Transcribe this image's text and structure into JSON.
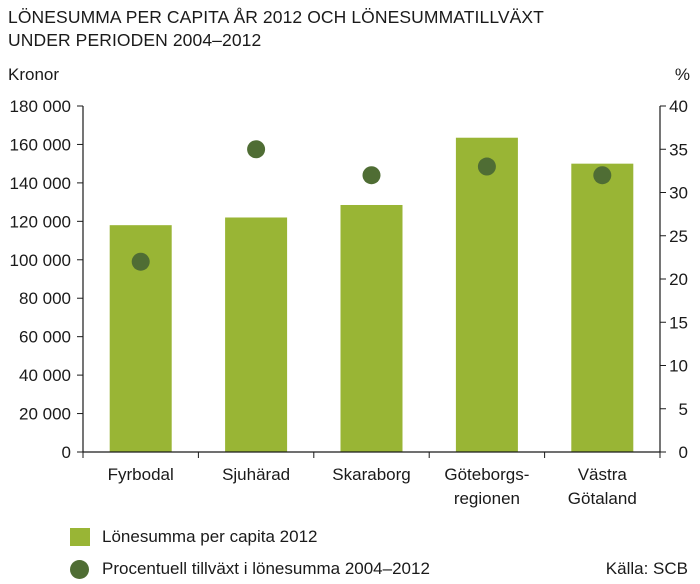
{
  "title_lines": [
    "LÖNESUMMA PER CAPITA ÅR 2012 OCH LÖNESUMMATILLVÄXT",
    "UNDER PERIODEN 2004–2012"
  ],
  "source": "Källa: SCB",
  "colors": {
    "bar": "#99b535",
    "dot": "#4f6d34",
    "axis": "#1a1a1a"
  },
  "chart_data": {
    "type": "bar",
    "title": "LÖNESUMMA PER CAPITA ÅR 2012 OCH LÖNESUMMATILLVÄXT UNDER PERIODEN 2004–2012",
    "categories": [
      [
        "Fyrbodal"
      ],
      [
        "Sjuhärad"
      ],
      [
        "Skaraborg"
      ],
      [
        "Göteborgs-",
        "regionen"
      ],
      [
        "Västra",
        "Götaland"
      ]
    ],
    "y_left": {
      "label": "Kronor",
      "ylim": [
        0,
        180000
      ],
      "ticks": [
        "0",
        "20 000",
        "40 000",
        "60 000",
        "80 000",
        "100 000",
        "120 000",
        "140 000",
        "160 000",
        "180 000"
      ]
    },
    "y_right": {
      "label": "%",
      "ylim": [
        0,
        40
      ],
      "ticks": [
        "0",
        "5",
        "10",
        "15",
        "20",
        "25",
        "30",
        "35",
        "40"
      ]
    },
    "series": [
      {
        "name": "Lönesumma per capita 2012",
        "type": "bar",
        "axis": "left",
        "values": [
          118000,
          122000,
          128500,
          163500,
          150000
        ]
      },
      {
        "name": "Procentuell tillväxt i lönesumma 2004–2012",
        "type": "scatter",
        "axis": "right",
        "values": [
          22,
          35,
          32,
          33,
          32
        ]
      }
    ],
    "grid": false,
    "legend": "bottom-left"
  }
}
